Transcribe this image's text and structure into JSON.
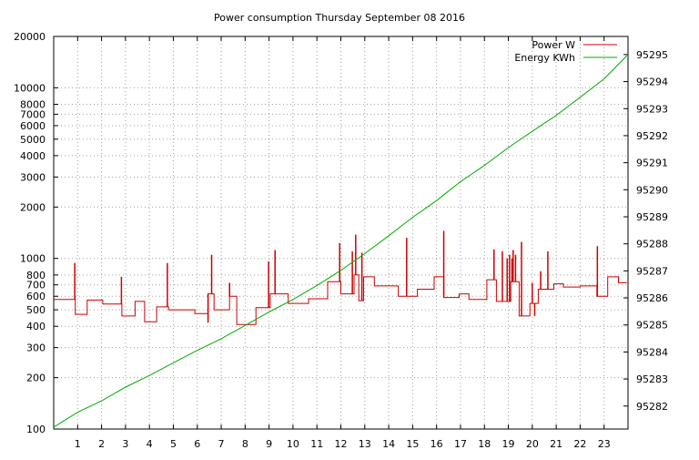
{
  "chart_data": {
    "type": "line",
    "title": "Power consumption Thursday September 08 2016",
    "xlabel": "",
    "ylabel": "",
    "y2label": "",
    "grid": true,
    "legend_position": "top-right",
    "xlim": [
      0,
      24
    ],
    "x_ticks": [
      1,
      2,
      3,
      4,
      5,
      6,
      7,
      8,
      9,
      10,
      11,
      12,
      13,
      14,
      15,
      16,
      17,
      18,
      19,
      20,
      21,
      22,
      23
    ],
    "y_scale": "log",
    "ylim": [
      100,
      20000
    ],
    "y_ticks": [
      100,
      200,
      300,
      400,
      500,
      600,
      700,
      800,
      1000,
      2000,
      3000,
      4000,
      5000,
      6000,
      7000,
      8000,
      10000,
      20000
    ],
    "y2lim": [
      95281.15,
      95295.67
    ],
    "y2_ticks": [
      95282,
      95283,
      95284,
      95285,
      95286,
      95287,
      95288,
      95289,
      95290,
      95291,
      95292,
      95293,
      95294,
      95295
    ],
    "series": [
      {
        "name": "Power W",
        "color": "#cc0000",
        "axis": "y",
        "step": true,
        "x": [
          0,
          0.9,
          0.9,
          1.4,
          1.4,
          2.05,
          2.05,
          2.85,
          2.85,
          3.4,
          3.4,
          3.8,
          3.8,
          4.3,
          4.3,
          4.8,
          4.8,
          5.9,
          5.9,
          6.45,
          6.45,
          6.7,
          6.7,
          7.35,
          7.35,
          7.65,
          7.65,
          8.45,
          8.45,
          9.05,
          9.05,
          9.8,
          9.8,
          10.65,
          10.65,
          11.45,
          11.45,
          12,
          12,
          12.55,
          12.55,
          12.75,
          12.75,
          12.95,
          12.95,
          13.4,
          13.4,
          14.4,
          14.4,
          15.2,
          15.2,
          15.9,
          15.9,
          16.3,
          16.3,
          16.95,
          16.95,
          17.35,
          17.35,
          18.1,
          18.1,
          18.5,
          18.5,
          19.1,
          19.1,
          19.45,
          19.45,
          19.9,
          19.9,
          20.25,
          20.25,
          20.9,
          20.9,
          21.3,
          21.3,
          22,
          22,
          22.7,
          22.7,
          23.15,
          23.15,
          23.6,
          23.6,
          23.95
        ],
        "values": [
          575,
          575,
          470,
          470,
          570,
          570,
          540,
          540,
          460,
          460,
          560,
          560,
          425,
          425,
          520,
          520,
          500,
          500,
          475,
          475,
          620,
          620,
          500,
          500,
          600,
          600,
          410,
          410,
          515,
          515,
          620,
          620,
          545,
          545,
          580,
          580,
          730,
          730,
          620,
          620,
          800,
          800,
          565,
          565,
          780,
          780,
          690,
          690,
          600,
          600,
          660,
          660,
          780,
          780,
          590,
          590,
          620,
          620,
          575,
          575,
          750,
          750,
          560,
          560,
          730,
          730,
          460,
          460,
          545,
          545,
          660,
          660,
          710,
          710,
          680,
          680,
          690,
          690,
          600,
          600,
          780,
          780,
          720,
          720
        ],
        "spikes": [
          {
            "x": 0.88,
            "y": 940
          },
          {
            "x": 2.83,
            "y": 780
          },
          {
            "x": 4.75,
            "y": 940
          },
          {
            "x": 6.45,
            "y": 420
          },
          {
            "x": 6.6,
            "y": 1050
          },
          {
            "x": 8.98,
            "y": 960
          },
          {
            "x": 9.25,
            "y": 1120
          },
          {
            "x": 11.95,
            "y": 1230
          },
          {
            "x": 12.48,
            "y": 1100
          },
          {
            "x": 12.62,
            "y": 1380
          },
          {
            "x": 12.88,
            "y": 1080
          },
          {
            "x": 14.75,
            "y": 1320
          },
          {
            "x": 16.3,
            "y": 1450
          },
          {
            "x": 18.75,
            "y": 1100
          },
          {
            "x": 18.95,
            "y": 1000
          },
          {
            "x": 19.05,
            "y": 1050
          },
          {
            "x": 19.15,
            "y": 1000
          },
          {
            "x": 19.2,
            "y": 1120
          },
          {
            "x": 19.3,
            "y": 1050
          },
          {
            "x": 19.55,
            "y": 1250
          },
          {
            "x": 20.0,
            "y": 720
          },
          {
            "x": 20.1,
            "y": 460
          },
          {
            "x": 20.35,
            "y": 840
          },
          {
            "x": 20.65,
            "y": 1100
          },
          {
            "x": 22.72,
            "y": 1180
          },
          {
            "x": 18.4,
            "y": 1130
          },
          {
            "x": 7.35,
            "y": 720
          }
        ]
      },
      {
        "name": "Energy KWh",
        "color": "#00aa00",
        "axis": "y2",
        "step": false,
        "x": [
          0,
          1,
          2,
          3,
          4,
          5,
          6,
          7,
          8,
          9,
          10,
          11,
          12,
          13,
          14,
          15,
          16,
          17,
          18,
          19,
          20,
          21,
          22,
          23,
          23.95
        ],
        "values": [
          95281.22,
          95281.77,
          95282.19,
          95282.7,
          95283.13,
          95283.6,
          95284.06,
          95284.49,
          95284.98,
          95285.48,
          95285.94,
          95286.46,
          95287.02,
          95287.64,
          95288.3,
          95288.98,
          95289.6,
          95290.3,
          95290.9,
          95291.56,
          95292.16,
          95292.75,
          95293.42,
          95294.1,
          95294.96
        ]
      }
    ]
  }
}
